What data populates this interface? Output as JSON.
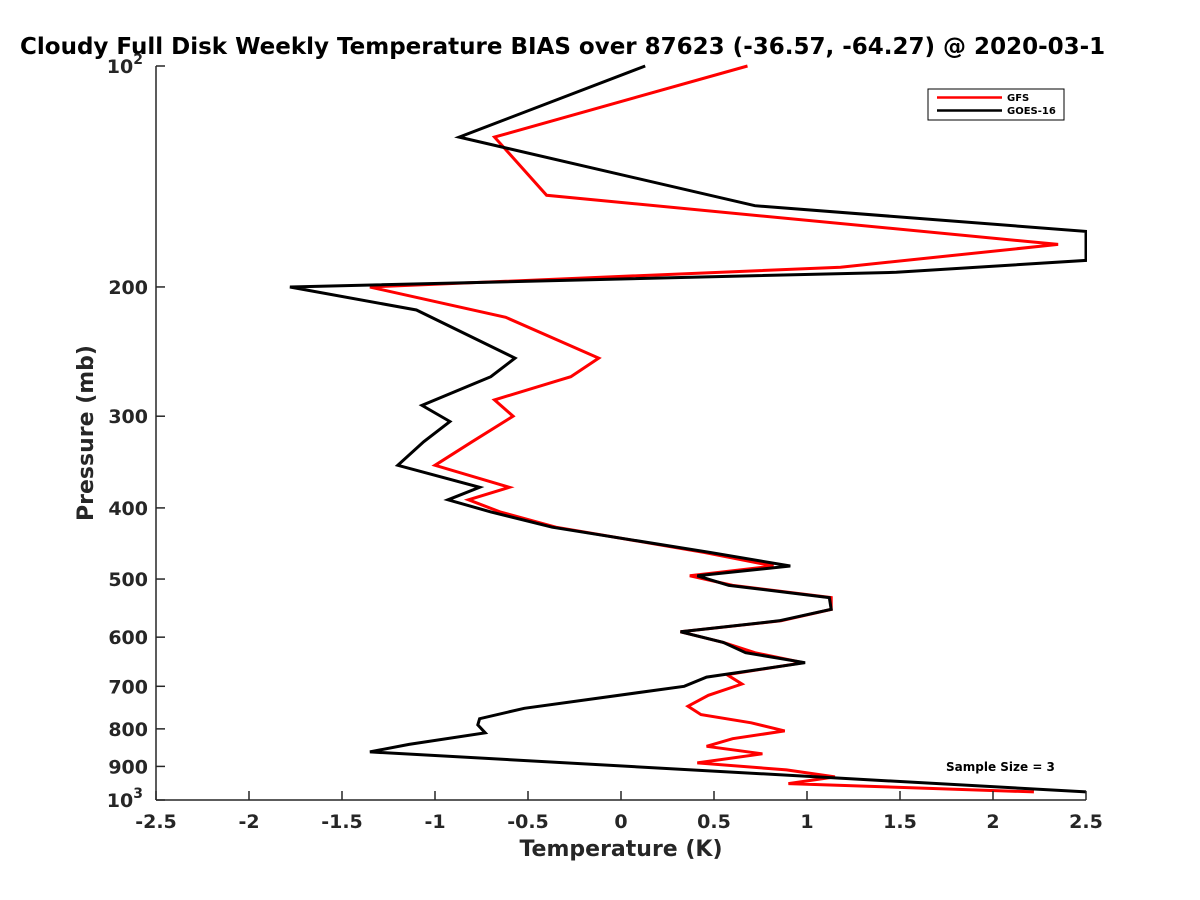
{
  "chart_data": {
    "type": "line",
    "title": "Cloudy Full Disk Weekly Temperature BIAS over 87623 (-36.57, -64.27) @ 2020-03-1",
    "xlabel": "Temperature (K)",
    "ylabel": "Pressure (mb)",
    "xlim": [
      -2.5,
      2.5
    ],
    "ylim": [
      100,
      1000
    ],
    "y_scale": "log",
    "y_reversed": true,
    "grid": false,
    "legend_position": "top-right",
    "x_ticks": [
      "-2.5",
      "-2",
      "-1.5",
      "-1",
      "-0.5",
      "0",
      "0.5",
      "1",
      "1.5",
      "2",
      "2.5"
    ],
    "y_ticks": [
      {
        "value": 100,
        "base": "10",
        "exp": "2"
      },
      {
        "value": 200,
        "label": "200"
      },
      {
        "value": 300,
        "label": "300"
      },
      {
        "value": 400,
        "label": "400"
      },
      {
        "value": 500,
        "label": "500"
      },
      {
        "value": 600,
        "label": "600"
      },
      {
        "value": 700,
        "label": "700"
      },
      {
        "value": 800,
        "label": "800"
      },
      {
        "value": 900,
        "label": "900"
      },
      {
        "value": 1000,
        "base": "10",
        "exp": "3"
      }
    ],
    "annotation": "Sample Size = 3",
    "series": [
      {
        "name": "GFS",
        "color": "#ff0000",
        "points": [
          [
            0.68,
            100
          ],
          [
            -0.68,
            125
          ],
          [
            -0.4,
            150
          ],
          [
            2.35,
            175
          ],
          [
            1.18,
            188
          ],
          [
            -1.35,
            200
          ],
          [
            -0.62,
            220
          ],
          [
            -0.12,
            250
          ],
          [
            -0.27,
            265
          ],
          [
            -0.68,
            285
          ],
          [
            -0.58,
            300
          ],
          [
            -0.8,
            325
          ],
          [
            -1.0,
            350
          ],
          [
            -0.6,
            375
          ],
          [
            -0.82,
            390
          ],
          [
            -0.65,
            405
          ],
          [
            -0.35,
            425
          ],
          [
            0.45,
            460
          ],
          [
            0.82,
            480
          ],
          [
            0.37,
            495
          ],
          [
            0.6,
            510
          ],
          [
            1.13,
            530
          ],
          [
            1.13,
            550
          ],
          [
            0.86,
            570
          ],
          [
            0.32,
            590
          ],
          [
            0.55,
            610
          ],
          [
            0.72,
            630
          ],
          [
            0.98,
            650
          ],
          [
            0.57,
            675
          ],
          [
            0.65,
            695
          ],
          [
            0.47,
            720
          ],
          [
            0.36,
            745
          ],
          [
            0.43,
            765
          ],
          [
            0.7,
            785
          ],
          [
            0.88,
            805
          ],
          [
            0.6,
            825
          ],
          [
            0.46,
            845
          ],
          [
            0.76,
            865
          ],
          [
            0.41,
            890
          ],
          [
            0.89,
            910
          ],
          [
            1.15,
            930
          ],
          [
            0.9,
            950
          ],
          [
            2.22,
            975
          ]
        ]
      },
      {
        "name": "GOES-16",
        "color": "#000000",
        "points": [
          [
            0.13,
            100
          ],
          [
            -0.87,
            125
          ],
          [
            0.72,
            155
          ],
          [
            2.5,
            168
          ],
          [
            2.5,
            184
          ],
          [
            1.48,
            191
          ],
          [
            -1.78,
            200
          ],
          [
            -1.1,
            215
          ],
          [
            -0.57,
            250
          ],
          [
            -0.7,
            265
          ],
          [
            -1.07,
            290
          ],
          [
            -0.92,
            305
          ],
          [
            -1.06,
            325
          ],
          [
            -1.2,
            350
          ],
          [
            -0.76,
            375
          ],
          [
            -0.93,
            390
          ],
          [
            -0.7,
            405
          ],
          [
            -0.37,
            425
          ],
          [
            0.48,
            460
          ],
          [
            0.91,
            480
          ],
          [
            0.41,
            495
          ],
          [
            0.58,
            510
          ],
          [
            1.12,
            530
          ],
          [
            1.13,
            550
          ],
          [
            0.85,
            570
          ],
          [
            0.32,
            590
          ],
          [
            0.55,
            610
          ],
          [
            0.67,
            630
          ],
          [
            0.99,
            650
          ],
          [
            0.46,
            680
          ],
          [
            0.34,
            700
          ],
          [
            -0.52,
            750
          ],
          [
            -0.76,
            775
          ],
          [
            -0.77,
            790
          ],
          [
            -0.73,
            810
          ],
          [
            -1.14,
            840
          ],
          [
            -1.35,
            860
          ],
          [
            2.5,
            975
          ]
        ]
      }
    ]
  }
}
